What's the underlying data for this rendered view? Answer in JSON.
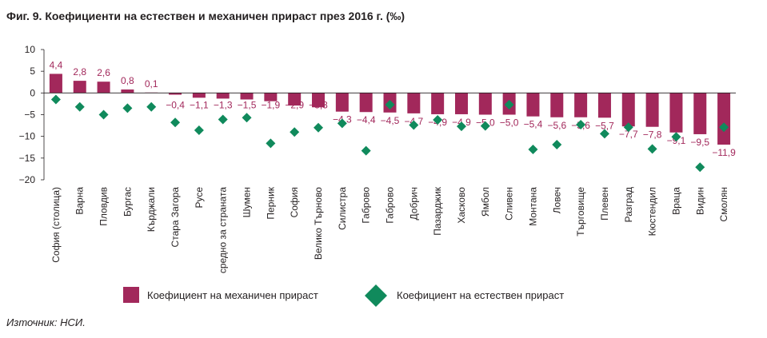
{
  "title": "Фиг. 9. Коефициенти на естествен и механичен прираст през 2016 г. (‰)",
  "source": "Източник: НСИ.",
  "chart_data": {
    "type": "bar",
    "title": "Фиг. 9. Коефициенти на естествен и механичен прираст през 2016 г. (‰)",
    "xlabel": "",
    "ylabel": "",
    "ylim": [
      -20,
      10
    ],
    "yticks": [
      10,
      5,
      0,
      -5,
      -10,
      -15,
      -20
    ],
    "ytick_labels": [
      "10",
      "5",
      "0",
      "−5",
      "−10",
      "−15",
      "−20"
    ],
    "grid": false,
    "legend_position": "bottom",
    "categories": [
      "София (столица)",
      "Варна",
      "Пловдив",
      "Бургас",
      "Кърджали",
      "Стара Загора",
      "Русе",
      "средно за страната",
      "Шумен",
      "Перник",
      "София",
      "Велико Търново",
      "Силистра",
      "Габрово",
      "Габрово",
      "Добрич",
      "Пазарджик",
      "Хасково",
      "Ямбол",
      "Сливен",
      "Монтана",
      "Ловеч",
      "Търговище",
      "Плевен",
      "Разград",
      "Кюстендил",
      "Враца",
      "Видин",
      "Смолян"
    ],
    "series": [
      {
        "name": "Коефициент на механичен прираст",
        "type": "bar",
        "color": "#a2285b",
        "values": [
          4.4,
          2.8,
          2.6,
          0.8,
          0.1,
          -0.4,
          -1.1,
          -1.3,
          -1.5,
          -1.9,
          -2.9,
          -3.3,
          -4.3,
          -4.4,
          -4.5,
          -4.7,
          -4.9,
          -4.9,
          -5.0,
          -5.0,
          -5.4,
          -5.6,
          -5.6,
          -5.7,
          -7.7,
          -7.8,
          -9.1,
          -9.5,
          -11.9
        ],
        "labels": [
          "4,4",
          "2,8",
          "2,6",
          "0,8",
          "0,1",
          "−0,4",
          "−1,1",
          "−1,3",
          "−1,5",
          "−1,9",
          "−2,9",
          "−3,3",
          "−4,3",
          "−4,4",
          "−4,5",
          "−4,7",
          "−4,9",
          "−4,9",
          "−5,0",
          "−5,0",
          "−5,4",
          "−5,6",
          "−5,6",
          "−5,7",
          "−7,7",
          "−7,8",
          "−9,1",
          "−9,5",
          "−11,9"
        ]
      },
      {
        "name": "Коефициент на естествен прираст",
        "type": "scatter",
        "marker": "diamond",
        "color": "#108a5c",
        "values": [
          -1.5,
          -3.2,
          -5.0,
          -3.5,
          -3.2,
          -6.8,
          -8.6,
          -6.1,
          -5.7,
          -11.6,
          -9.0,
          -8.0,
          -7.0,
          -13.3,
          -2.7,
          -7.4,
          -6.2,
          -7.7,
          -7.6,
          -2.7,
          -13.0,
          -11.9,
          -7.3,
          -9.4,
          -7.9,
          -12.9,
          -10.1,
          -17.1,
          -7.9
        ]
      }
    ]
  }
}
